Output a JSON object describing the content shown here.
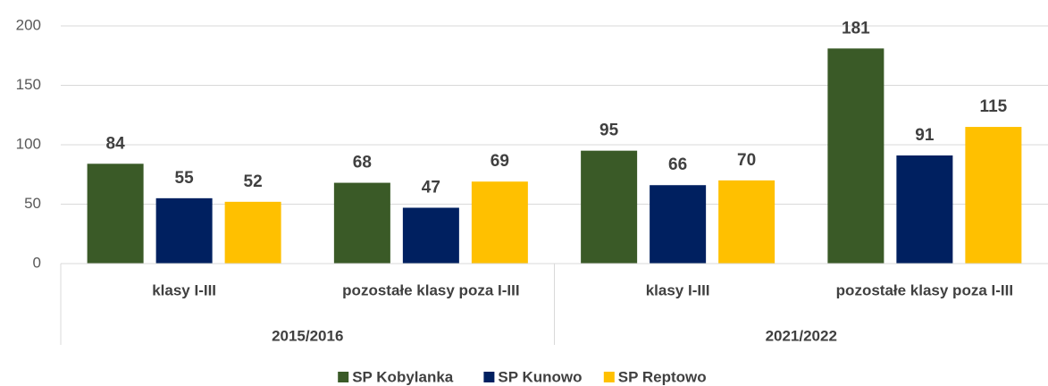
{
  "chart_data": {
    "type": "bar",
    "groups": [
      {
        "name": "2015/2016",
        "categories": [
          "klasy I-III",
          "pozostałe klasy poza I-III"
        ]
      },
      {
        "name": "2021/2022",
        "categories": [
          "klasy I-III",
          "pozostałe klasy poza I-III"
        ]
      }
    ],
    "series": [
      {
        "name": "SP Kobylanka",
        "color": "#3a5a27",
        "values": [
          84,
          68,
          95,
          181
        ]
      },
      {
        "name": "SP Kunowo",
        "color": "#002060",
        "values": [
          55,
          47,
          66,
          91
        ]
      },
      {
        "name": "SP Reptowo",
        "color": "#ffc000",
        "values": [
          52,
          69,
          70,
          115
        ]
      }
    ],
    "ylim": [
      0,
      200
    ],
    "yticks": [
      0,
      50,
      100,
      150,
      200
    ],
    "grid": true,
    "legend": "bottom"
  }
}
